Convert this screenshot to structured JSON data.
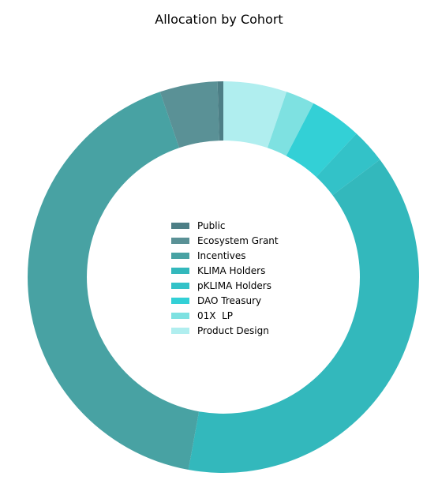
{
  "chart_data": {
    "type": "pie",
    "title": "Allocation by Cohort",
    "donut": true,
    "legend_position": "center",
    "slices": [
      {
        "label": "Public",
        "value": 0.5,
        "color": "#4d7f86"
      },
      {
        "label": "Ecosystem Grant",
        "value": 5,
        "color": "#5a9196"
      },
      {
        "label": "Incentives",
        "value": 44,
        "color": "#48a2a3"
      },
      {
        "label": "KLIMA Holders",
        "value": 40,
        "color": "#33b8bc"
      },
      {
        "label": "pKLIMA Holders",
        "value": 3,
        "color": "#33c2c8"
      },
      {
        "label": "DAO Treasury",
        "value": 4.5,
        "color": "#33d0d6"
      },
      {
        "label": "01X  LP",
        "value": 2.5,
        "color": "#7ee1e1"
      },
      {
        "label": "Product Design",
        "value": 5.5,
        "color": "#b0eeef"
      }
    ]
  }
}
